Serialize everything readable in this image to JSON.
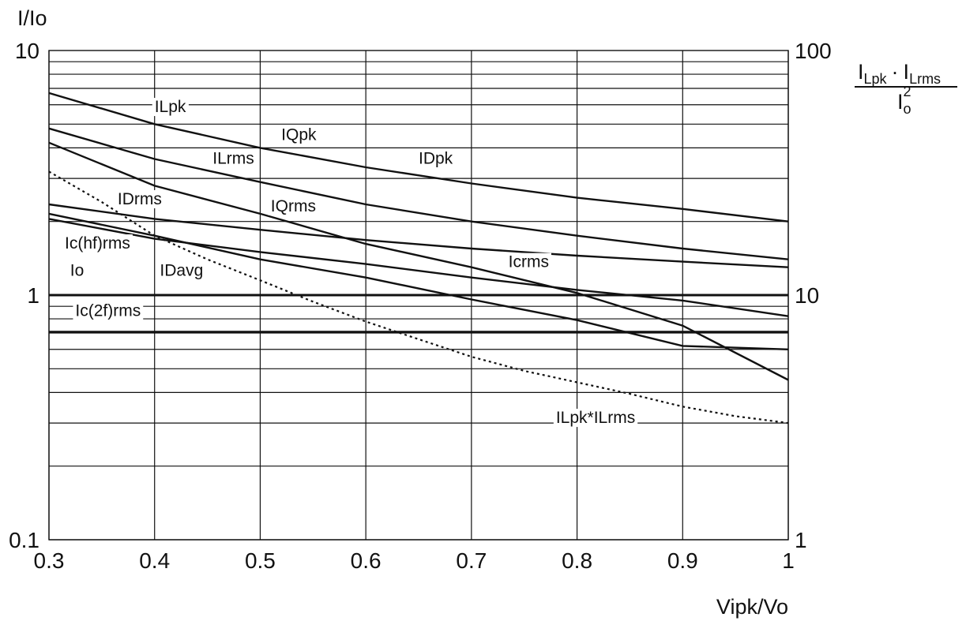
{
  "chart_data": {
    "type": "line",
    "x_axis": {
      "label": "Vipk/Vo",
      "range": [
        0.3,
        1.0
      ],
      "ticks": [
        0.3,
        0.4,
        0.5,
        0.6,
        0.7,
        0.8,
        0.9,
        1.0
      ],
      "tick_labels": [
        "0.3",
        "0.4",
        "0.5",
        "0.6",
        "0.7",
        "0.8",
        "0.9",
        "1"
      ]
    },
    "y_axis_left": {
      "label": "I/Io",
      "scale": "log",
      "range": [
        0.1,
        10
      ],
      "tick_values": [
        0.1,
        1,
        10
      ],
      "tick_labels": [
        "0.1",
        "1",
        "10"
      ]
    },
    "y_axis_right": {
      "label_numerator": "I",
      "label_numerator_sub1": "Lpk",
      "label_dot": "·",
      "label_numerator_2": "I",
      "label_numerator_sub2": "Lrms",
      "label_denominator": "I",
      "label_denominator_sub": "o",
      "label_denominator_sup": "2",
      "scale": "log",
      "range": [
        1,
        100
      ],
      "tick_values": [
        1,
        10,
        100
      ],
      "tick_labels": [
        "1",
        "10",
        "100"
      ]
    },
    "grid": true,
    "series": [
      {
        "name": "ILpk",
        "style": "solid",
        "x": [
          0.3,
          0.4,
          0.5,
          0.6,
          0.7,
          0.8,
          0.9,
          1.0
        ],
        "y": [
          6.7,
          5.0,
          4.0,
          3.33,
          2.86,
          2.5,
          2.25,
          2.0
        ]
      },
      {
        "name": "IQpk",
        "style": "solid",
        "x": [
          0.3,
          0.4,
          0.5,
          0.6,
          0.7,
          0.8,
          0.9,
          1.0
        ],
        "y": [
          4.8,
          3.6,
          2.9,
          2.35,
          2.0,
          1.75,
          1.55,
          1.4
        ]
      },
      {
        "name": "IDpk",
        "style": "solid",
        "x": [
          0.3,
          0.4,
          0.5,
          0.6,
          0.7,
          0.8,
          0.9,
          1.0
        ],
        "y": [
          2.35,
          2.05,
          1.85,
          1.68,
          1.55,
          1.45,
          1.37,
          1.3
        ]
      },
      {
        "name": "ILrms",
        "style": "solid",
        "x": [
          0.3,
          0.4,
          0.5,
          0.6,
          0.7,
          0.8,
          0.9,
          1.0
        ],
        "y": [
          4.2,
          2.8,
          2.15,
          1.62,
          1.3,
          1.02,
          0.75,
          0.45
        ]
      },
      {
        "name": "IQrms",
        "style": "solid",
        "x": [
          0.3,
          0.4,
          0.5,
          0.6,
          0.7,
          0.8,
          0.9,
          1.0
        ],
        "y": [
          2.15,
          1.75,
          1.4,
          1.18,
          0.96,
          0.79,
          0.62,
          0.6
        ]
      },
      {
        "name": "IDrms",
        "style": "solid",
        "x": [
          0.3,
          0.4,
          0.5,
          0.6,
          0.7,
          0.8,
          0.9,
          1.0
        ],
        "y": [
          2.05,
          1.7,
          1.5,
          1.34,
          1.18,
          1.05,
          0.95,
          0.82
        ]
      },
      {
        "name": "ILpk*ILrms",
        "style": "dotted",
        "axis": "right",
        "x": [
          0.3,
          0.35,
          0.4,
          0.45,
          0.5,
          0.55,
          0.6,
          0.65,
          0.7,
          0.75,
          0.8,
          0.85,
          0.9,
          0.95,
          1.0
        ],
        "y": [
          32,
          24,
          17.5,
          14,
          11.5,
          9.4,
          7.8,
          6.6,
          5.6,
          4.9,
          4.4,
          3.95,
          3.5,
          3.2,
          3.0
        ]
      },
      {
        "name": "Io",
        "style": "flat",
        "x": [
          0.3,
          1.0
        ],
        "y": [
          1.0,
          1.0
        ]
      },
      {
        "name": "Ic(2f)rms",
        "style": "flat",
        "x": [
          0.3,
          1.0
        ],
        "y": [
          0.707,
          0.707
        ]
      }
    ],
    "annotations": [
      {
        "text": "ILpk",
        "x": 0.4,
        "y": 5.6
      },
      {
        "text": "IQpk",
        "x": 0.52,
        "y": 4.3
      },
      {
        "text": "IDpk",
        "x": 0.65,
        "y": 3.45
      },
      {
        "text": "ILrms",
        "x": 0.455,
        "y": 3.45
      },
      {
        "text": "IDrms",
        "x": 0.365,
        "y": 2.35
      },
      {
        "text": "IQrms",
        "x": 0.51,
        "y": 2.2
      },
      {
        "text": "Ic(hf)rms",
        "x": 0.315,
        "y": 1.55
      },
      {
        "text": "Io",
        "x": 0.32,
        "y": 1.2
      },
      {
        "text": "IDavg",
        "x": 0.405,
        "y": 1.2
      },
      {
        "text": "Icrms",
        "x": 0.735,
        "y": 1.3
      },
      {
        "text": "Ic(2f)rms",
        "x": 0.325,
        "y": 0.82
      },
      {
        "text": "ILpk*ILrms",
        "x": 0.78,
        "y": 0.3
      }
    ]
  }
}
